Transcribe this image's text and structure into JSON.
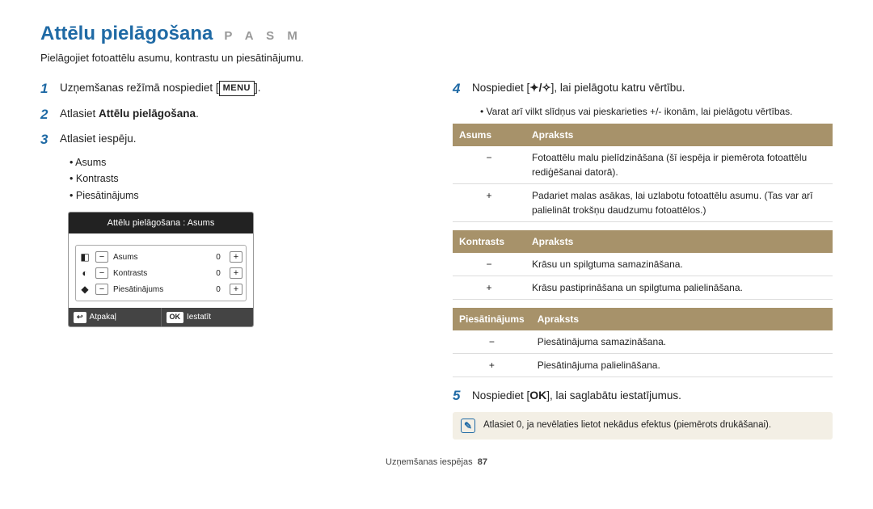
{
  "header": {
    "title": "Attēlu pielāgošana",
    "modes": "P A S M",
    "subtitle": "Pielāgojiet fotoattēlu asumu, kontrastu un piesātinājumu."
  },
  "left": {
    "steps": [
      {
        "num": "1",
        "pre": "Uzņemšanas režīmā nospiediet [",
        "btn": "MENU",
        "post": "]."
      },
      {
        "num": "2",
        "pre": "Atlasiet ",
        "bold": "Attēlu pielāgošana",
        "post": "."
      },
      {
        "num": "3",
        "pre": "Atlasiet iespēju.",
        "bold": "",
        "post": ""
      }
    ],
    "bullets": [
      "Asums",
      "Kontrasts",
      "Piesātinājums"
    ],
    "shot": {
      "header": "Attēlu pielāgošana : Asums",
      "rows": [
        {
          "icon": "◧",
          "label": "Asums",
          "value": "0"
        },
        {
          "icon": "◐",
          "label": "Kontrasts",
          "value": "0"
        },
        {
          "icon": "◆",
          "label": "Piesātinājums",
          "value": "0"
        }
      ],
      "footer": {
        "back_key": "↩",
        "back": "Atpakaļ",
        "ok_key": "OK",
        "ok": "Iestatīt"
      },
      "minus": "−",
      "plus": "+"
    }
  },
  "right": {
    "step4": {
      "num": "4",
      "pre": "Nospiediet [",
      "sym": "✦/✧",
      "post": "], lai pielāgotu katru vērtību."
    },
    "step4_sub": "Varat arī vilkt slīdņus vai pieskarieties +/- ikonām, lai pielāgotu vērtības.",
    "tables": [
      {
        "head1": "Asums",
        "head2": "Apraksts",
        "rows": [
          {
            "s": "−",
            "d": "Fotoattēlu malu pielīdzināšana (šī iespēja ir piemērota fotoattēlu rediģēšanai datorā)."
          },
          {
            "s": "+",
            "d": "Padariet malas asākas, lai uzlabotu fotoattēlu asumu. (Tas var arī palielināt trokšņu daudzumu fotoattēlos.)"
          }
        ]
      },
      {
        "head1": "Kontrasts",
        "head2": "Apraksts",
        "rows": [
          {
            "s": "−",
            "d": "Krāsu un spilgtuma samazināšana."
          },
          {
            "s": "+",
            "d": "Krāsu pastiprināšana un spilgtuma palielināšana."
          }
        ]
      },
      {
        "head1": "Piesātinājums",
        "head2": "Apraksts",
        "rows": [
          {
            "s": "−",
            "d": "Piesātinājuma samazināšana."
          },
          {
            "s": "+",
            "d": "Piesātinājuma palielināšana."
          }
        ]
      }
    ],
    "step5": {
      "num": "5",
      "pre": "Nospiediet [",
      "sym": "OK",
      "post": "], lai saglabātu iestatījumus."
    },
    "note": "Atlasiet 0, ja nevēlaties lietot nekādus efektus (piemērots drukāšanai).",
    "note_icon": "✎"
  },
  "footer": {
    "text": "Uzņemšanas iespējas",
    "page": "87"
  }
}
